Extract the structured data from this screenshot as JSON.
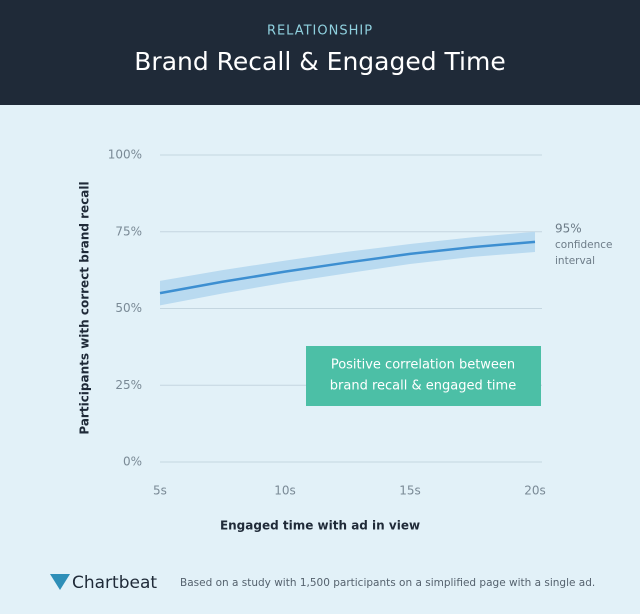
{
  "chart_data": {
    "type": "line",
    "kicker": "RELATIONSHIP",
    "title": "Brand Recall & Engaged Time",
    "x_label": "Engaged time with ad in view",
    "y_label": "Participants with correct brand recall",
    "x": [
      5,
      7.5,
      10,
      12.5,
      15,
      17.5,
      20
    ],
    "series": [
      {
        "name": "Brand recall",
        "color": "#3d8fd1",
        "values": [
          55,
          58.7,
          62,
          65,
          67.8,
          70,
          71.7
        ]
      }
    ],
    "band": {
      "color": "#b9daf0",
      "upper": [
        59,
        62.5,
        65.6,
        68.5,
        71,
        73.2,
        75
      ],
      "lower": [
        51,
        54.9,
        58.4,
        61.5,
        64.5,
        66.8,
        68.4
      ]
    },
    "band_label": [
      "95%",
      "confidence",
      "interval"
    ],
    "callout": [
      "Positive correlation between",
      "brand recall & engaged time"
    ],
    "xlim": [
      5,
      20
    ],
    "xticks": [
      {
        "value": 5,
        "label": "5s"
      },
      {
        "value": 10,
        "label": "10s"
      },
      {
        "value": 15,
        "label": "15s"
      },
      {
        "value": 20,
        "label": "20s"
      }
    ],
    "ylim": [
      0,
      100
    ],
    "yticks": [
      {
        "value": 0,
        "label": "0%"
      },
      {
        "value": 25,
        "label": "25%"
      },
      {
        "value": 50,
        "label": "50%"
      },
      {
        "value": 75,
        "label": "75%"
      },
      {
        "value": 100,
        "label": "100%"
      }
    ],
    "grid": true,
    "brand": "Chartbeat",
    "footnote": "Based on a study with 1,500 participants on a simplified page with a single ad."
  }
}
